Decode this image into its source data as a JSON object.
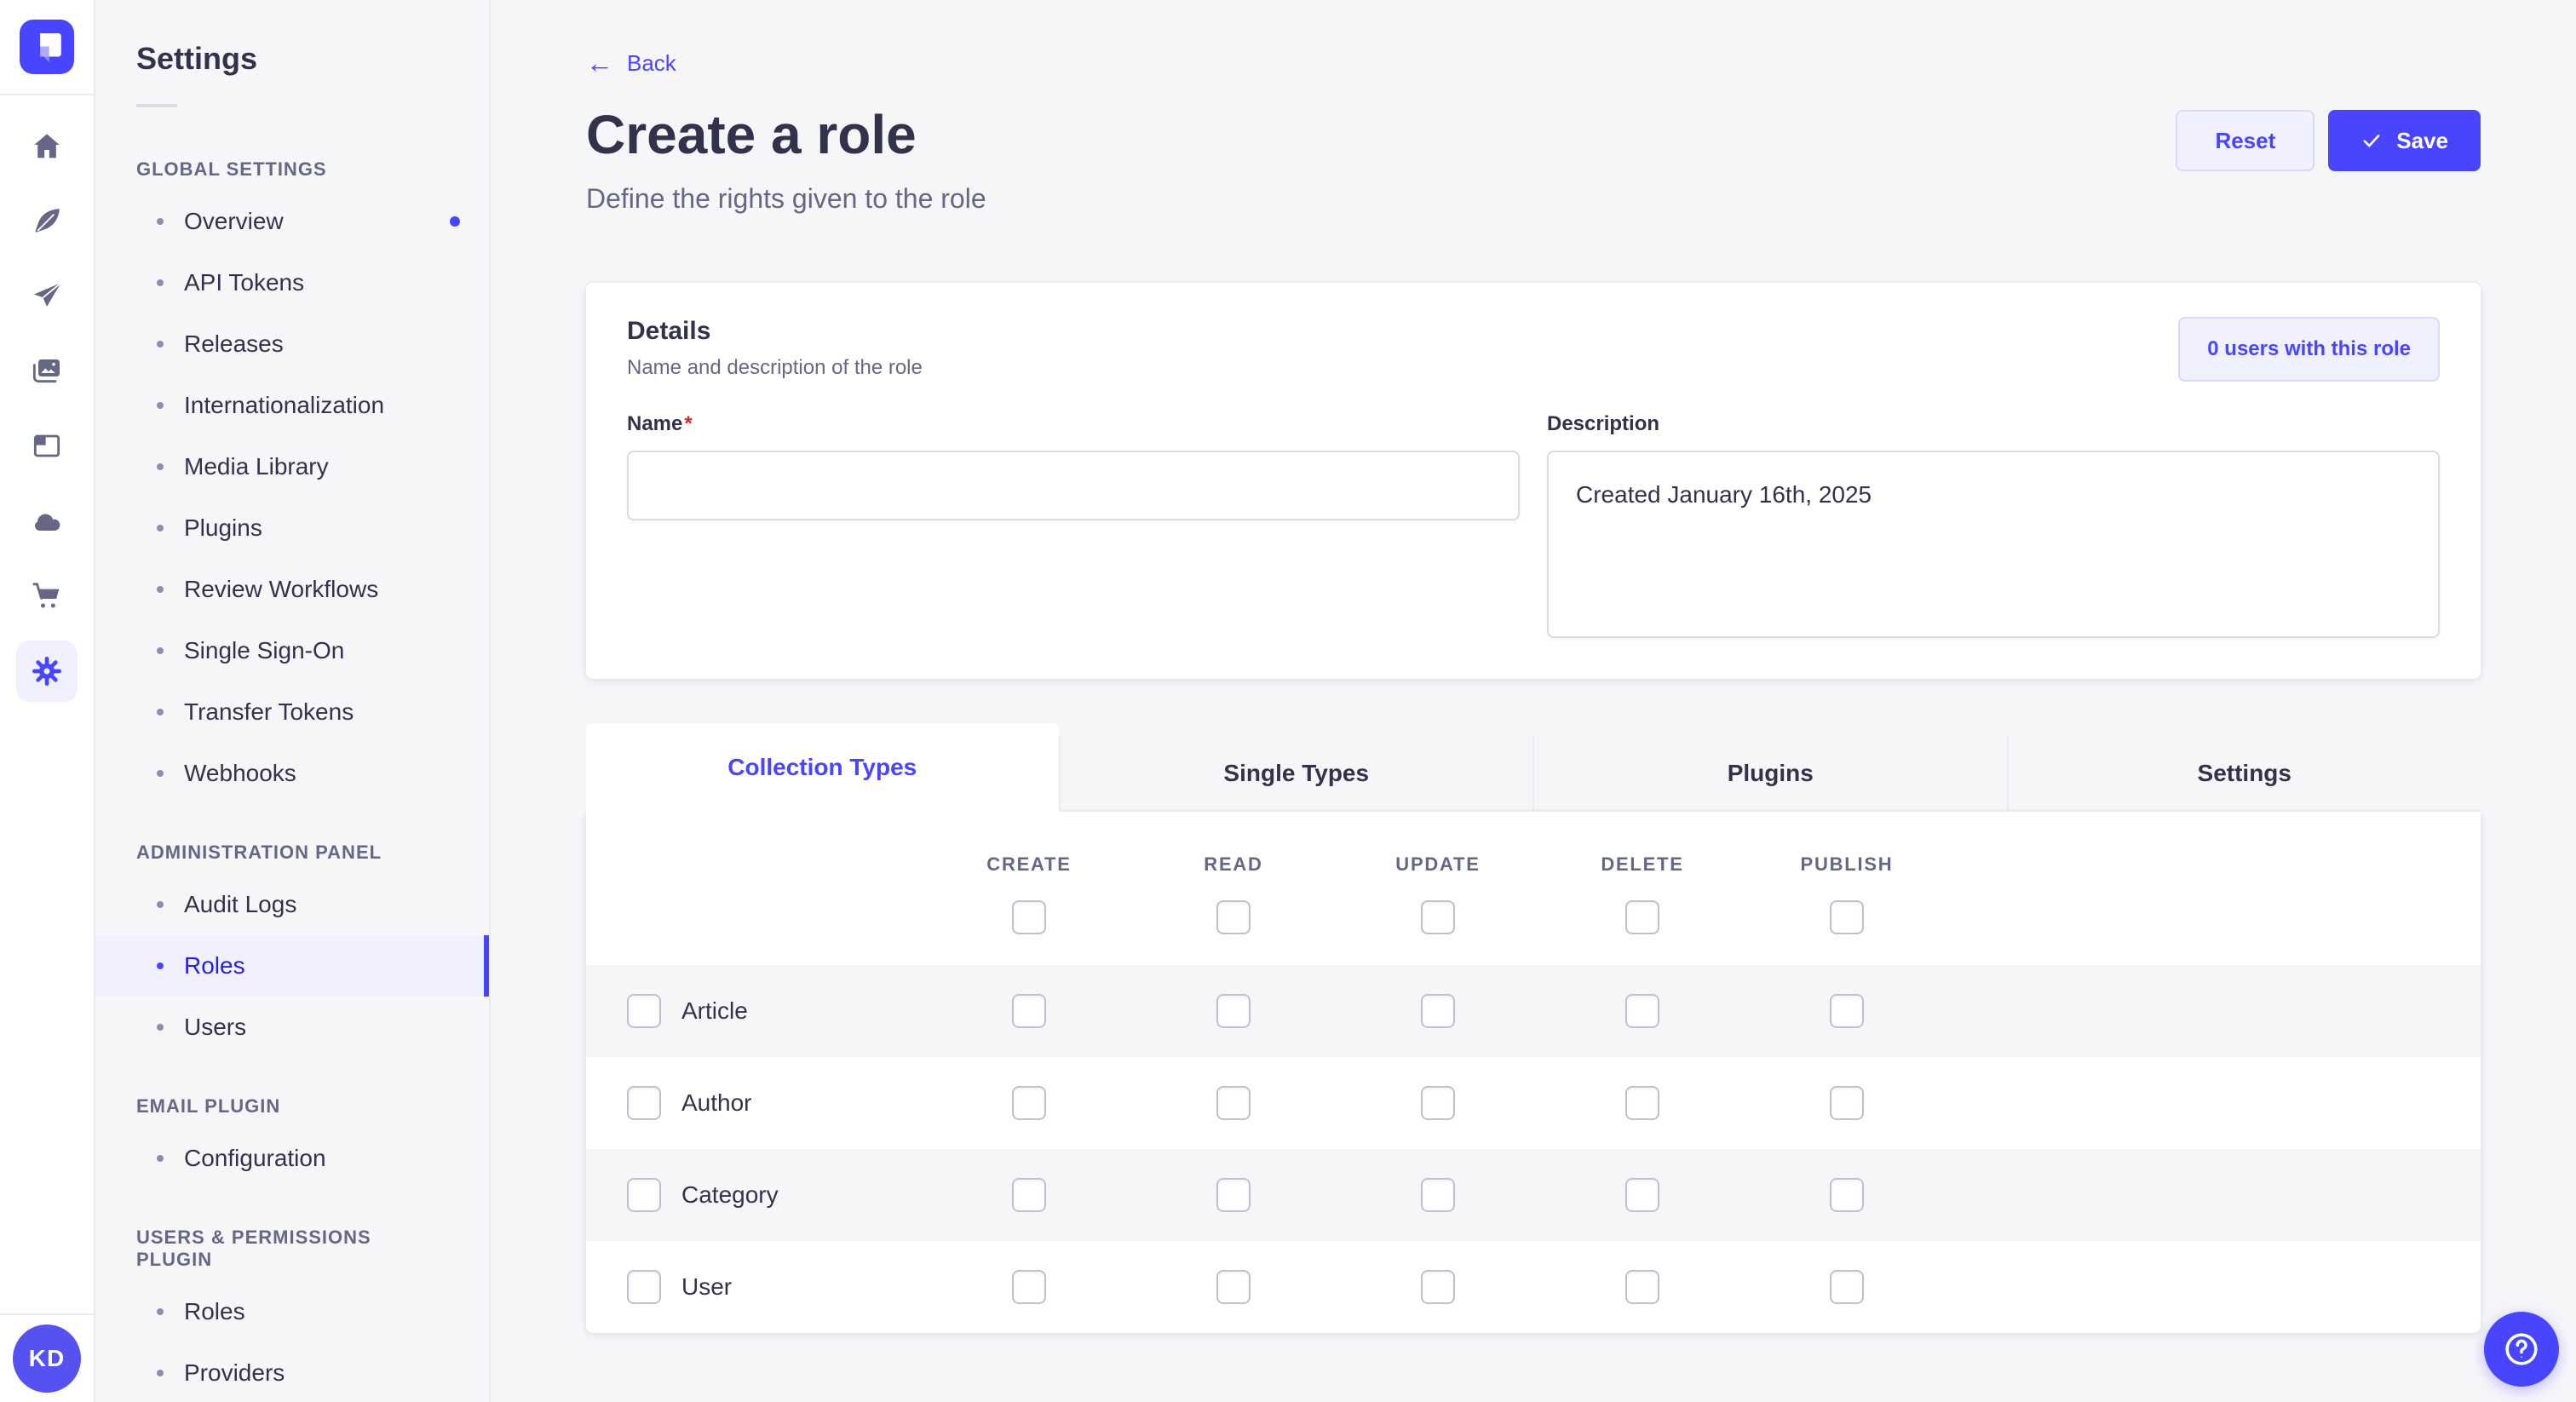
{
  "colors": {
    "primary": "#4945ff",
    "primary_active_text": "#271fe0",
    "primary_light_bg": "#f0f0ff",
    "primary_light_border": "#d9d8ff",
    "page_background": "#f6f6f9",
    "card_background": "#ffffff",
    "text_dark": "#32324d",
    "text_gray": "#666687",
    "required_asterisk": "#d02b20"
  },
  "rail": {
    "logo_icon": "strapi-logo-icon",
    "icons": [
      {
        "name": "home-icon",
        "active": false
      },
      {
        "name": "feather-icon",
        "active": false
      },
      {
        "name": "paper-plane-icon",
        "active": false
      },
      {
        "name": "media-library-icon",
        "active": false
      },
      {
        "name": "layout-icon",
        "active": false
      },
      {
        "name": "cloud-icon",
        "active": false
      },
      {
        "name": "cart-icon",
        "active": false
      },
      {
        "name": "gear-icon",
        "active": true
      }
    ],
    "avatar_initials": "KD"
  },
  "subnav": {
    "title": "Settings",
    "sections": [
      {
        "title": "GLOBAL SETTINGS",
        "items": [
          {
            "label": "Overview",
            "dot": true
          },
          {
            "label": "API Tokens"
          },
          {
            "label": "Releases"
          },
          {
            "label": "Internationalization"
          },
          {
            "label": "Media Library"
          },
          {
            "label": "Plugins"
          },
          {
            "label": "Review Workflows"
          },
          {
            "label": "Single Sign-On"
          },
          {
            "label": "Transfer Tokens"
          },
          {
            "label": "Webhooks"
          }
        ]
      },
      {
        "title": "ADMINISTRATION PANEL",
        "items": [
          {
            "label": "Audit Logs"
          },
          {
            "label": "Roles",
            "active": true
          },
          {
            "label": "Users"
          }
        ]
      },
      {
        "title": "EMAIL PLUGIN",
        "items": [
          {
            "label": "Configuration"
          }
        ]
      },
      {
        "title": "USERS & PERMISSIONS PLUGIN",
        "items": [
          {
            "label": "Roles"
          },
          {
            "label": "Providers"
          }
        ]
      }
    ]
  },
  "header": {
    "back_label": "Back",
    "back_arrow": "←",
    "title": "Create a role",
    "subtitle": "Define the rights given to the role",
    "reset_label": "Reset",
    "save_label": "Save",
    "save_icon": "check-icon"
  },
  "details": {
    "title": "Details",
    "subtitle": "Name and description of the role",
    "users_button": "0 users with this role",
    "name_label": "Name",
    "name_required_mark": "*",
    "name_value": "",
    "description_label": "Description",
    "description_value": "Created January 16th, 2025"
  },
  "permissions": {
    "tabs": [
      {
        "label": "Collection Types",
        "active": true
      },
      {
        "label": "Single Types"
      },
      {
        "label": "Plugins"
      },
      {
        "label": "Settings"
      }
    ],
    "columns": [
      "CREATE",
      "READ",
      "UPDATE",
      "DELETE",
      "PUBLISH"
    ],
    "rows": [
      {
        "label": "Article"
      },
      {
        "label": "Author"
      },
      {
        "label": "Category"
      },
      {
        "label": "User"
      }
    ],
    "checkboxes_checked": false
  },
  "help_button": {
    "icon": "question-icon"
  }
}
